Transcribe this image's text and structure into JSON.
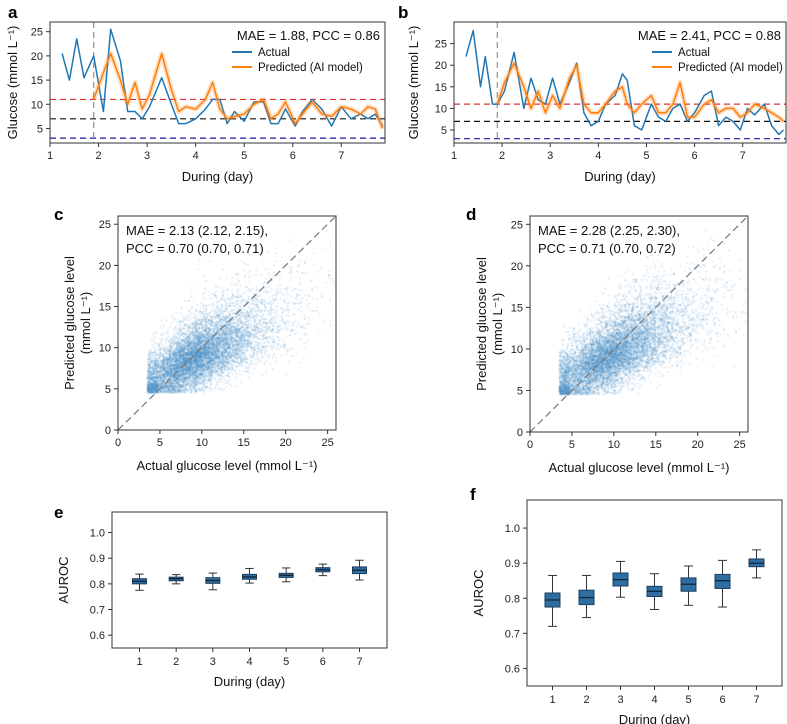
{
  "figure": {
    "colors": {
      "actual": "#1f77b4",
      "predicted": "#ff7f0e",
      "ref_high": "#e03030",
      "ref_mid": "#111111",
      "ref_low": "#1a1aa0",
      "event": "#9a9a9a",
      "scatter": "#4a90c8",
      "box": "#2f6ea3"
    }
  },
  "chart_data": [
    {
      "panel": "a",
      "type": "line",
      "annotation": "MAE = 1.88, PCC = 0.86",
      "xlabel": "During (day)",
      "ylabel": "Glucose (mmol L⁻¹)",
      "xlim": [
        1.0,
        7.9
      ],
      "ylim": [
        2,
        27
      ],
      "xticks": [
        "1",
        "2",
        "3",
        "4",
        "5",
        "6",
        "7"
      ],
      "yticks": [
        "5",
        "10",
        "15",
        "20",
        "25"
      ],
      "reference_lines": [
        11,
        7,
        3
      ],
      "event_x": 1.9,
      "legend": [
        "Actual",
        "Predicted (AI model)"
      ],
      "series": [
        {
          "name": "Actual",
          "x": [
            1.25,
            1.4,
            1.55,
            1.7,
            1.9,
            2.1,
            2.25,
            2.45,
            2.6,
            2.75,
            2.9,
            3.05,
            3.3,
            3.5,
            3.65,
            3.8,
            4.0,
            4.2,
            4.35,
            4.5,
            4.65,
            4.8,
            5.0,
            5.2,
            5.4,
            5.55,
            5.7,
            5.85,
            6.05,
            6.2,
            6.4,
            6.6,
            6.8,
            7.0,
            7.2,
            7.4,
            7.55,
            7.7,
            7.85
          ],
          "y": [
            20.5,
            15,
            23.5,
            15.5,
            20,
            8.5,
            25.5,
            19,
            8.5,
            8.5,
            7,
            9.5,
            15.5,
            10,
            6,
            6,
            7,
            9,
            11,
            11,
            6,
            8.5,
            6.5,
            10.5,
            10.5,
            6,
            6,
            9,
            5.5,
            8.5,
            11,
            9,
            5.5,
            9.5,
            7,
            8,
            7,
            8,
            5.5
          ]
        },
        {
          "name": "Predicted (AI model)",
          "x": [
            1.9,
            2.1,
            2.25,
            2.45,
            2.6,
            2.75,
            2.9,
            3.05,
            3.3,
            3.5,
            3.65,
            3.8,
            4.0,
            4.2,
            4.35,
            4.5,
            4.65,
            4.8,
            5.0,
            5.2,
            5.4,
            5.55,
            5.7,
            5.85,
            6.05,
            6.2,
            6.4,
            6.6,
            6.8,
            7.0,
            7.2,
            7.4,
            7.55,
            7.7,
            7.85
          ],
          "y": [
            11,
            16.5,
            20.5,
            15,
            10,
            14.5,
            9,
            12,
            20.5,
            13,
            8.5,
            9.5,
            9,
            11,
            14.5,
            9,
            7,
            7.5,
            8,
            10,
            11,
            7,
            8,
            10.5,
            6,
            8,
            10.5,
            8,
            7.5,
            9.5,
            9,
            8,
            9.5,
            9,
            5
          ]
        }
      ]
    },
    {
      "panel": "b",
      "type": "line",
      "annotation": "MAE = 2.41, PCC = 0.88",
      "xlabel": "During (day)",
      "ylabel": "Glucose (mmol L⁻¹)",
      "xlim": [
        1.0,
        7.9
      ],
      "ylim": [
        2,
        30
      ],
      "xticks": [
        "1",
        "2",
        "3",
        "4",
        "5",
        "6",
        "7"
      ],
      "yticks": [
        "5",
        "10",
        "15",
        "20",
        "25"
      ],
      "reference_lines": [
        11,
        7,
        3
      ],
      "event_x": 1.9,
      "legend": [
        "Actual",
        "Predicted (AI model)"
      ],
      "series": [
        {
          "name": "Actual",
          "x": [
            1.25,
            1.4,
            1.55,
            1.65,
            1.8,
            1.9,
            2.05,
            2.25,
            2.45,
            2.6,
            2.75,
            2.9,
            3.05,
            3.2,
            3.4,
            3.55,
            3.7,
            3.85,
            4.0,
            4.15,
            4.35,
            4.5,
            4.6,
            4.75,
            4.9,
            5.1,
            5.25,
            5.4,
            5.55,
            5.7,
            5.85,
            6.0,
            6.2,
            6.35,
            6.5,
            6.65,
            6.8,
            6.95,
            7.1,
            7.25,
            7.45,
            7.6,
            7.75,
            7.85
          ],
          "y": [
            22,
            28,
            15,
            22,
            11,
            11,
            14,
            23,
            10,
            17,
            12,
            11,
            17,
            11,
            16,
            20.5,
            9,
            6,
            7,
            11,
            13,
            18,
            16.5,
            6,
            5,
            11,
            8,
            7,
            10,
            11,
            7,
            9,
            13,
            14,
            6,
            8,
            7,
            5,
            10,
            8.5,
            11,
            6,
            4,
            5
          ]
        },
        {
          "name": "Predicted (AI model)",
          "x": [
            1.9,
            2.05,
            2.25,
            2.45,
            2.6,
            2.75,
            2.9,
            3.05,
            3.2,
            3.4,
            3.55,
            3.7,
            3.85,
            4.0,
            4.15,
            4.35,
            4.5,
            4.6,
            4.75,
            4.9,
            5.1,
            5.25,
            5.4,
            5.55,
            5.7,
            5.85,
            6.0,
            6.2,
            6.35,
            6.5,
            6.65,
            6.8,
            6.95,
            7.1,
            7.25,
            7.45,
            7.6,
            7.75,
            7.85
          ],
          "y": [
            11,
            16,
            20.5,
            15,
            10,
            14,
            9,
            13,
            10,
            17,
            20,
            11,
            9,
            9,
            11,
            14,
            15,
            11,
            9,
            11,
            13,
            9,
            9,
            11,
            16,
            8,
            8,
            11,
            12,
            9,
            10,
            10,
            8,
            9,
            11,
            10,
            9,
            8,
            7
          ]
        }
      ]
    },
    {
      "panel": "c",
      "type": "scatter",
      "annotation_lines": [
        "MAE = 2.13 (2.12, 2.15),",
        "PCC = 0.70 (0.70, 0.71)"
      ],
      "xlabel": "Actual glucose level (mmol L⁻¹)",
      "ylabel": [
        "Predicted glucose level",
        "(mmol L⁻¹)"
      ],
      "xlim": [
        0,
        26
      ],
      "ylim": [
        0,
        26
      ],
      "xticks": [
        "0",
        "5",
        "10",
        "15",
        "20",
        "25"
      ],
      "yticks": [
        "0",
        "5",
        "10",
        "15",
        "20",
        "25"
      ],
      "identity_line": true,
      "distribution": {
        "x_mean": 9.5,
        "x_sd": 3.6,
        "x_min": 3.5,
        "pcc": 0.7,
        "y_mean": 9.0,
        "y_sd": 2.6,
        "y_min": 4.5,
        "n_points": 9000
      }
    },
    {
      "panel": "d",
      "type": "scatter",
      "annotation_lines": [
        "MAE = 2.28 (2.25, 2.30),",
        "PCC = 0.71 (0.70, 0.72)"
      ],
      "xlabel": "Actual glucose level (mmol L⁻¹)",
      "ylabel": [
        "Predicted glucose level",
        "(mmol L⁻¹)"
      ],
      "xlim": [
        0,
        26
      ],
      "ylim": [
        0,
        26
      ],
      "xticks": [
        "0",
        "5",
        "10",
        "15",
        "20",
        "25"
      ],
      "yticks": [
        "0",
        "5",
        "10",
        "15",
        "20",
        "25"
      ],
      "identity_line": true,
      "distribution": {
        "x_mean": 9.8,
        "x_sd": 3.8,
        "x_min": 3.5,
        "pcc": 0.71,
        "y_mean": 9.4,
        "y_sd": 2.8,
        "y_min": 4.5,
        "n_points": 9000
      }
    },
    {
      "panel": "e",
      "type": "box",
      "xlabel": "During (day)",
      "ylabel": "AUROC",
      "ylim": [
        0.55,
        1.08
      ],
      "categories": [
        "1",
        "2",
        "3",
        "4",
        "5",
        "6",
        "7"
      ],
      "yticks": [
        "0.6",
        "0.7",
        "0.8",
        "0.9",
        "1.0"
      ],
      "boxes": [
        {
          "whislo": 0.775,
          "q1": 0.8,
          "med": 0.81,
          "q3": 0.82,
          "whishi": 0.838
        },
        {
          "whislo": 0.8,
          "q1": 0.812,
          "med": 0.82,
          "q3": 0.826,
          "whishi": 0.836
        },
        {
          "whislo": 0.777,
          "q1": 0.802,
          "med": 0.813,
          "q3": 0.824,
          "whishi": 0.842
        },
        {
          "whislo": 0.803,
          "q1": 0.818,
          "med": 0.827,
          "q3": 0.837,
          "whishi": 0.86
        },
        {
          "whislo": 0.808,
          "q1": 0.825,
          "med": 0.833,
          "q3": 0.841,
          "whishi": 0.862
        },
        {
          "whislo": 0.832,
          "q1": 0.847,
          "med": 0.855,
          "q3": 0.863,
          "whishi": 0.877
        },
        {
          "whislo": 0.815,
          "q1": 0.84,
          "med": 0.853,
          "q3": 0.866,
          "whishi": 0.892
        }
      ]
    },
    {
      "panel": "f",
      "type": "box",
      "xlabel": "During (day)",
      "ylabel": "AUROC",
      "ylim": [
        0.55,
        1.08
      ],
      "categories": [
        "1",
        "2",
        "3",
        "4",
        "5",
        "6",
        "7"
      ],
      "yticks": [
        "0.6",
        "0.7",
        "0.8",
        "0.9",
        "1.0"
      ],
      "boxes": [
        {
          "whislo": 0.72,
          "q1": 0.775,
          "med": 0.795,
          "q3": 0.815,
          "whishi": 0.865
        },
        {
          "whislo": 0.745,
          "q1": 0.782,
          "med": 0.802,
          "q3": 0.823,
          "whishi": 0.865
        },
        {
          "whislo": 0.803,
          "q1": 0.835,
          "med": 0.853,
          "q3": 0.872,
          "whishi": 0.905
        },
        {
          "whislo": 0.768,
          "q1": 0.805,
          "med": 0.82,
          "q3": 0.834,
          "whishi": 0.87
        },
        {
          "whislo": 0.78,
          "q1": 0.82,
          "med": 0.84,
          "q3": 0.858,
          "whishi": 0.892
        },
        {
          "whislo": 0.775,
          "q1": 0.828,
          "med": 0.85,
          "q3": 0.868,
          "whishi": 0.908
        },
        {
          "whislo": 0.858,
          "q1": 0.89,
          "med": 0.9,
          "q3": 0.912,
          "whishi": 0.938
        }
      ]
    }
  ]
}
